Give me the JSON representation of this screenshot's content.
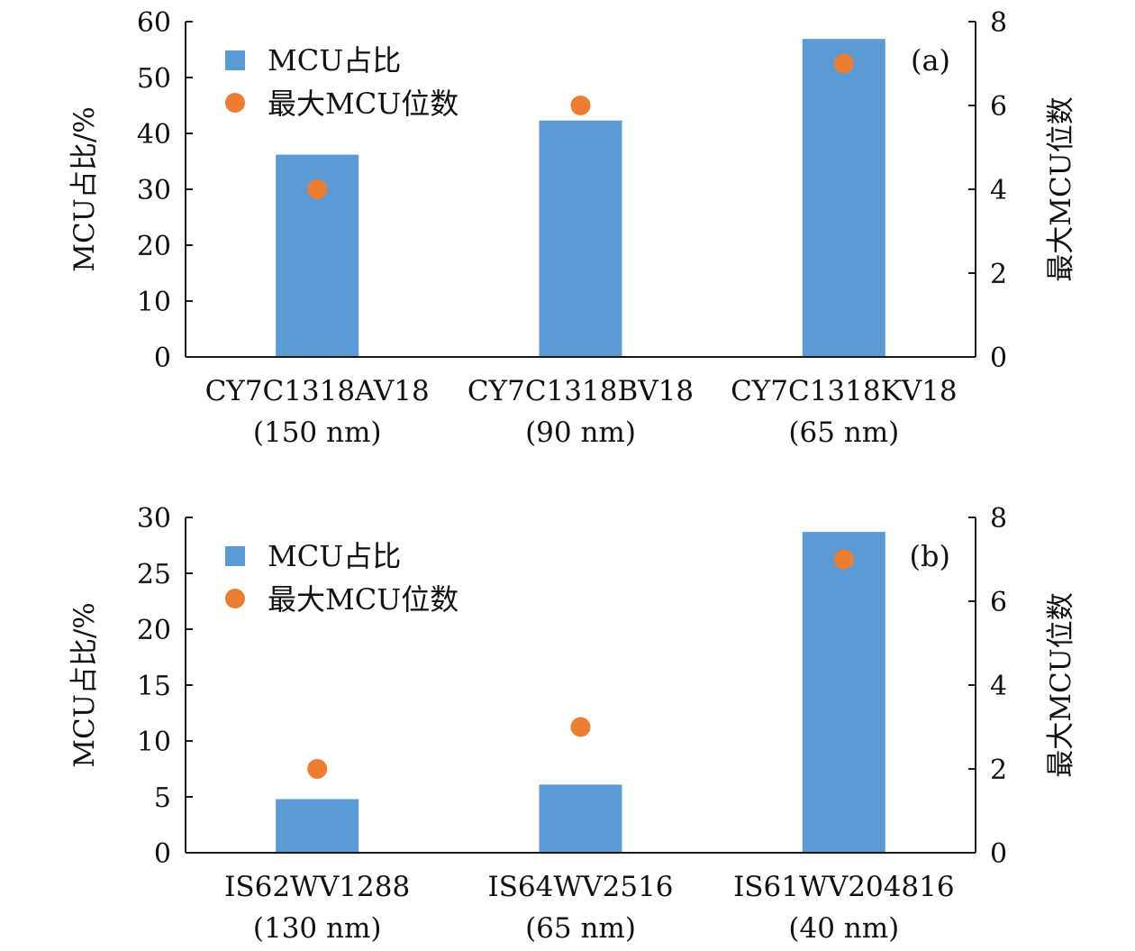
{
  "chart_data": [
    {
      "type": "bar",
      "panel_label": "(a)",
      "categories": [
        "CY7C1318AV18",
        "CY7C1318BV18",
        "CY7C1318KV18"
      ],
      "category_sublabels": [
        "(150 nm)",
        "(90 nm)",
        "(65 nm)"
      ],
      "series": [
        {
          "name": "MCU占比",
          "type": "bar",
          "axis": "left",
          "values": [
            36.2,
            42.3,
            56.9
          ]
        },
        {
          "name": "最大MCU位数",
          "type": "scatter",
          "axis": "right",
          "values": [
            4,
            6,
            7
          ]
        }
      ],
      "ylabel": "MCU占比/%",
      "ylabel_right": "最大MCU位数",
      "ylim": [
        0,
        60
      ],
      "yticks": [
        0,
        10,
        20,
        30,
        40,
        50,
        60
      ],
      "ylim_right": [
        0,
        8
      ],
      "yticks_right": [
        0,
        2,
        4,
        6,
        8
      ],
      "legend": "top-left",
      "grid": false
    },
    {
      "type": "bar",
      "panel_label": "(b)",
      "categories": [
        "IS62WV1288",
        "IS64WV2516",
        "IS61WV204816"
      ],
      "category_sublabels": [
        "(130 nm)",
        "(65 nm)",
        "(40 nm)"
      ],
      "series": [
        {
          "name": "MCU占比",
          "type": "bar",
          "axis": "left",
          "values": [
            4.8,
            6.1,
            28.7
          ]
        },
        {
          "name": "最大MCU位数",
          "type": "scatter",
          "axis": "right",
          "values": [
            2,
            3,
            7
          ]
        }
      ],
      "ylabel": "MCU占比/%",
      "ylabel_right": "最大MCU位数",
      "ylim": [
        0,
        30
      ],
      "yticks": [
        0,
        5,
        10,
        15,
        20,
        25,
        30
      ],
      "ylim_right": [
        0,
        8
      ],
      "yticks_right": [
        0,
        2,
        4,
        6,
        8
      ],
      "legend": "top-left",
      "grid": false
    }
  ],
  "colors": {
    "bar": "#5b9bd5",
    "marker": "#ed7d31",
    "axis": "#1a1a1a"
  }
}
